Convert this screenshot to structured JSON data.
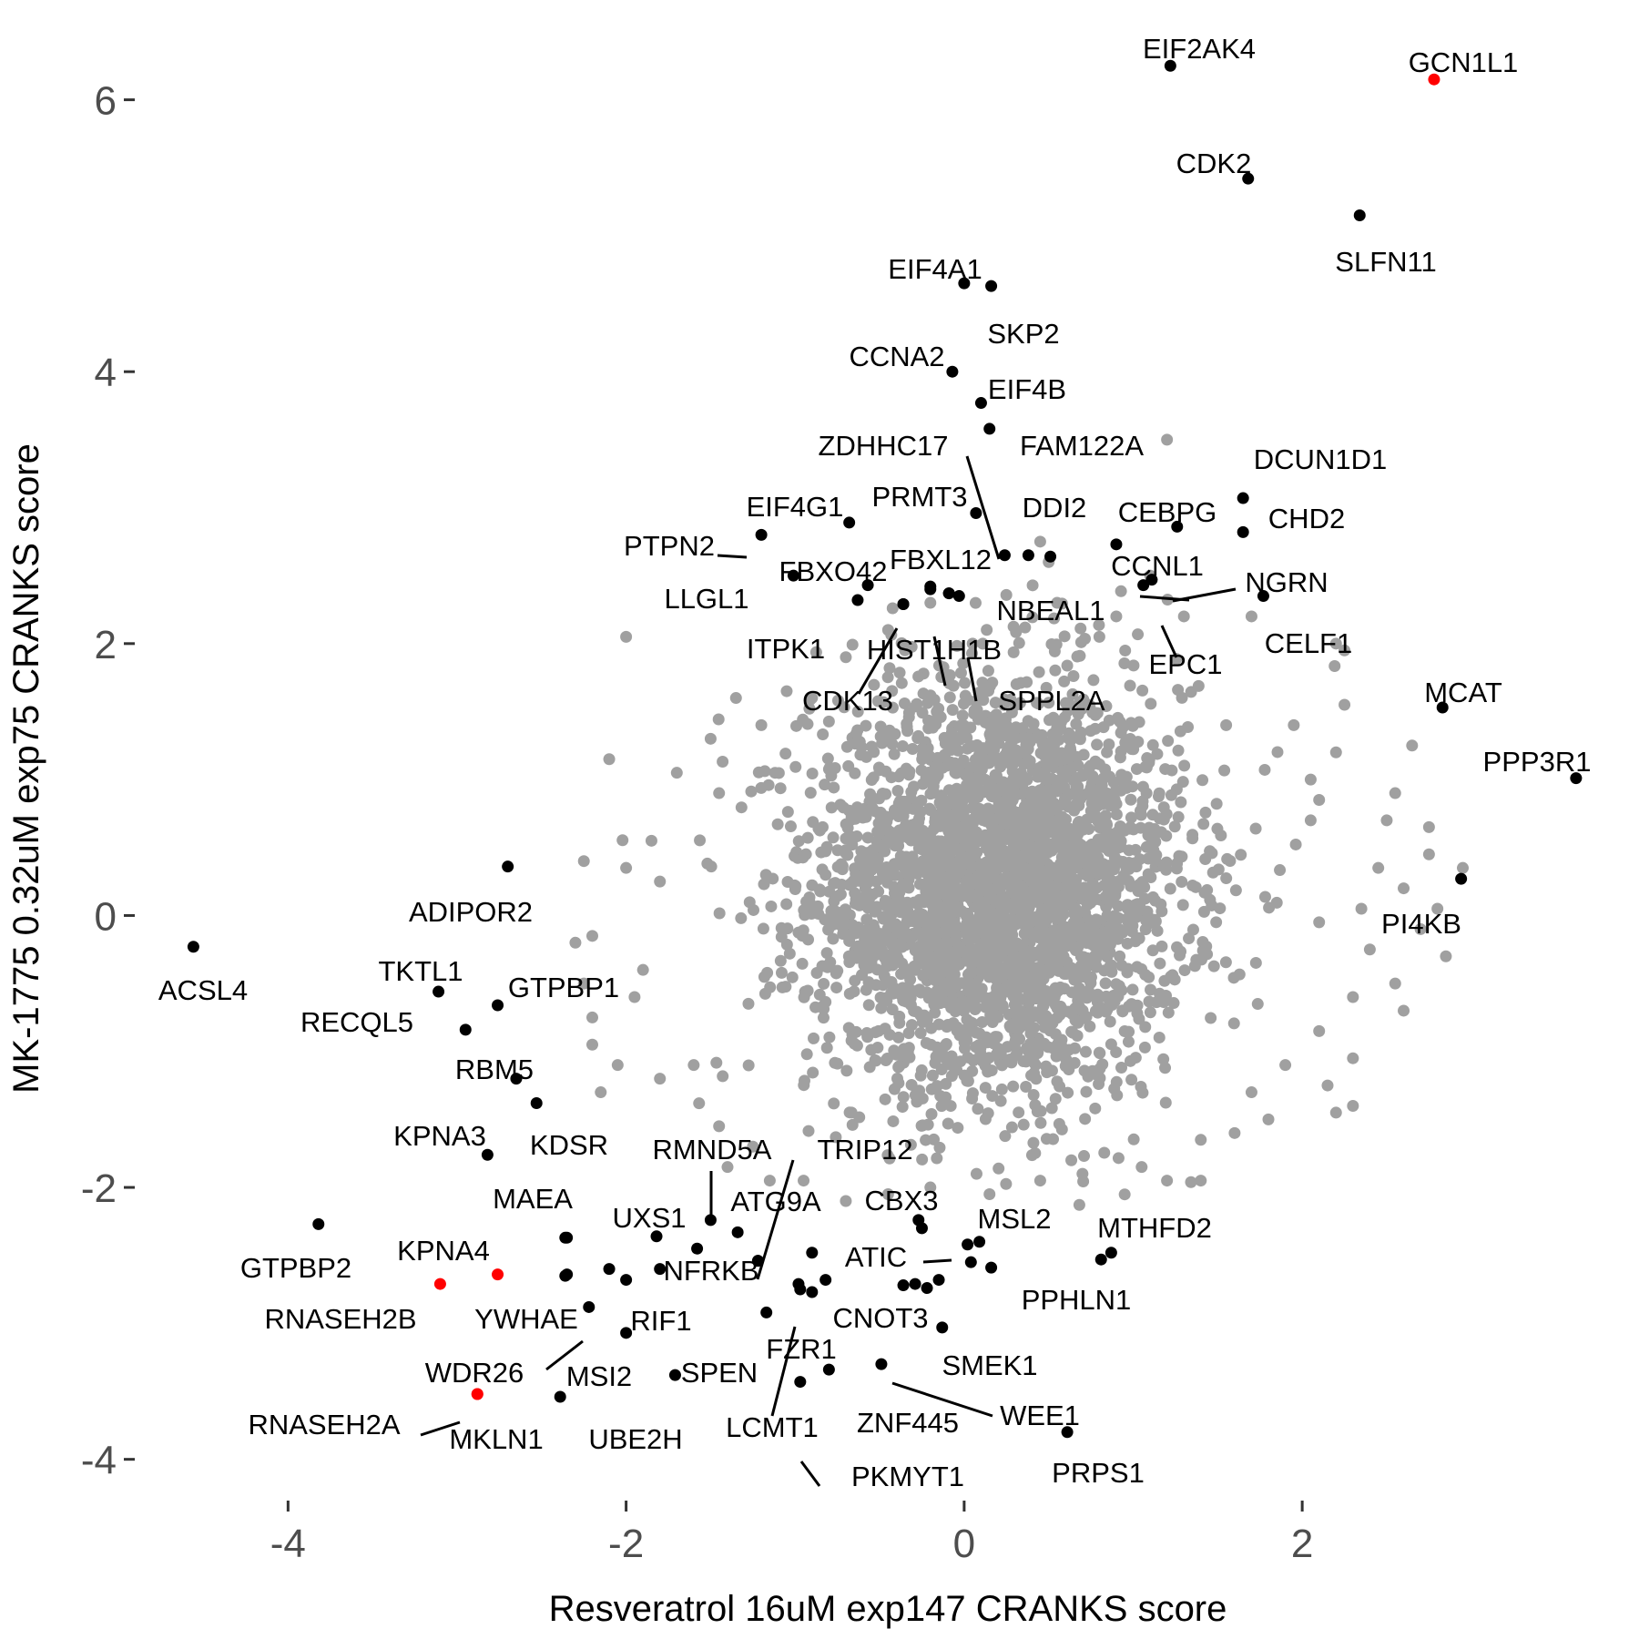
{
  "chart_data": {
    "type": "scatter",
    "title": "",
    "xlabel": "Resveratrol 16uM exp147 CRANKS score",
    "ylabel": "MK-1775 0.32uM exp75 CRANKS score",
    "xlim": [
      -4.95,
      3.75
    ],
    "ylim": [
      -4.25,
      6.6
    ],
    "x_ticks": [
      -4,
      -2,
      0,
      2
    ],
    "y_ticks": [
      -4,
      -2,
      0,
      2,
      4,
      6
    ],
    "x_tick_labels": [
      "-4",
      "-2",
      "0",
      "2"
    ],
    "y_tick_labels": [
      "-4",
      "-2",
      "0",
      "2",
      "4",
      "6"
    ],
    "grid": false,
    "legend": "none",
    "colors": {
      "background_points": "#a0a0a0",
      "highlight": "#000000",
      "special": "#ff0000",
      "leader_line": "#000000"
    },
    "background_cloud": {
      "color": "#a0a0a0",
      "x_center": 0.2,
      "y_center": 0.2,
      "x_spread": 0.55,
      "y_spread": 0.75,
      "count": 3200
    },
    "background_outliers": [
      {
        "x": 1.2,
        "y": 3.5
      },
      {
        "x": -2.0,
        "y": 2.05
      },
      {
        "x": 2.2,
        "y": 2.0
      },
      {
        "x": 2.25,
        "y": 1.95
      },
      {
        "x": 1.7,
        "y": 2.2
      },
      {
        "x": -1.35,
        "y": 1.6
      },
      {
        "x": -1.05,
        "y": 1.65
      },
      {
        "x": -2.1,
        "y": 1.15
      },
      {
        "x": 1.55,
        "y": 1.4
      },
      {
        "x": 1.95,
        "y": 1.4
      },
      {
        "x": 2.25,
        "y": 1.55
      },
      {
        "x": 2.2,
        "y": 1.2
      },
      {
        "x": 2.65,
        "y": 1.25
      },
      {
        "x": 2.05,
        "y": 1.0
      },
      {
        "x": 2.1,
        "y": 0.85
      },
      {
        "x": 2.05,
        "y": 0.7
      },
      {
        "x": 2.55,
        "y": 0.9
      },
      {
        "x": 2.75,
        "y": 0.65
      },
      {
        "x": 2.75,
        "y": 0.45
      },
      {
        "x": 2.6,
        "y": 0.2
      },
      {
        "x": 2.45,
        "y": 0.35
      },
      {
        "x": 2.35,
        "y": 0.05
      },
      {
        "x": 2.1,
        "y": -0.05
      },
      {
        "x": 2.4,
        "y": -0.25
      },
      {
        "x": 2.55,
        "y": -0.5
      },
      {
        "x": 2.7,
        "y": -0.1
      },
      {
        "x": 2.6,
        "y": -0.7
      },
      {
        "x": 2.3,
        "y": -0.6
      },
      {
        "x": 2.15,
        "y": -1.25
      },
      {
        "x": 2.2,
        "y": -1.45
      },
      {
        "x": 1.9,
        "y": -1.1
      },
      {
        "x": 1.7,
        "y": -1.3
      },
      {
        "x": 2.1,
        "y": -0.85
      },
      {
        "x": 1.2,
        "y": -1.95
      },
      {
        "x": 1.4,
        "y": -1.95
      },
      {
        "x": 1.6,
        "y": -1.6
      },
      {
        "x": -2.3,
        "y": -0.2
      },
      {
        "x": -2.25,
        "y": -0.5
      },
      {
        "x": -2.2,
        "y": -0.95
      },
      {
        "x": -2.15,
        "y": -1.3
      },
      {
        "x": -2.2,
        "y": -0.15
      },
      {
        "x": -1.9,
        "y": -0.4
      },
      {
        "x": -1.95,
        "y": -0.6
      },
      {
        "x": -2.25,
        "y": 0.4
      },
      {
        "x": -2.0,
        "y": 0.35
      },
      {
        "x": -1.85,
        "y": 0.55
      },
      {
        "x": -1.8,
        "y": 0.25
      },
      {
        "x": -2.2,
        "y": -0.75
      },
      {
        "x": -2.05,
        "y": -1.1
      },
      {
        "x": -1.8,
        "y": -1.2
      },
      {
        "x": -1.6,
        "y": -1.1
      },
      {
        "x": -1.45,
        "y": -1.55
      },
      {
        "x": -1.4,
        "y": -1.85
      },
      {
        "x": -1.15,
        "y": -1.95
      },
      {
        "x": -1.25,
        "y": -1.7
      },
      {
        "x": -0.95,
        "y": -1.95
      },
      {
        "x": -0.7,
        "y": -2.1
      },
      {
        "x": -0.45,
        "y": -2.05
      },
      {
        "x": -0.2,
        "y": -2.0
      },
      {
        "x": 0.15,
        "y": -2.05
      },
      {
        "x": 0.45,
        "y": -1.95
      },
      {
        "x": 0.7,
        "y": -1.9
      },
      {
        "x": 1.05,
        "y": -1.85
      },
      {
        "x": 0.9,
        "y": 2.2
      },
      {
        "x": 1.1,
        "y": 2.5
      },
      {
        "x": 1.3,
        "y": 2.2
      },
      {
        "x": 0.8,
        "y": 2.05
      },
      {
        "x": 0.55,
        "y": 2.3
      },
      {
        "x": 0.45,
        "y": 2.75
      },
      {
        "x": 0.5,
        "y": 2.6
      },
      {
        "x": -0.2,
        "y": 2.3
      },
      {
        "x": -0.45,
        "y": 2.1
      },
      {
        "x": -0.7,
        "y": 1.9
      },
      {
        "x": -0.35,
        "y": 1.95
      },
      {
        "x": 0.05,
        "y": 2.0
      },
      {
        "x": -0.9,
        "y": 1.6
      },
      {
        "x": -1.2,
        "y": 1.4
      },
      {
        "x": -1.5,
        "y": 1.3
      },
      {
        "x": -1.7,
        "y": 1.05
      },
      {
        "x": -1.45,
        "y": 0.9
      },
      {
        "x": 2.95,
        "y": 0.35
      },
      {
        "x": 2.85,
        "y": -0.3
      },
      {
        "x": 2.5,
        "y": 0.7
      },
      {
        "x": 2.3,
        "y": -1.05
      },
      {
        "x": 2.3,
        "y": -1.4
      },
      {
        "x": 1.4,
        "y": -1.65
      },
      {
        "x": 1.8,
        "y": -1.5
      },
      {
        "x": 2.8,
        "y": 0.05
      }
    ],
    "highlighted_points": [
      {
        "label": "EIF2AK4",
        "x": 1.22,
        "y": 6.25,
        "color": "#000000"
      },
      {
        "label": "GCN1L1",
        "x": 2.78,
        "y": 6.15,
        "color": "#ff0000"
      },
      {
        "label": "CDK2",
        "x": 1.68,
        "y": 5.42,
        "color": "#000000"
      },
      {
        "label": "SLFN11",
        "x": 2.34,
        "y": 5.15,
        "color": "#000000"
      },
      {
        "label": "EIF4A1",
        "x": 0.0,
        "y": 4.65,
        "color": "#000000"
      },
      {
        "label": "SKP2",
        "x": 0.16,
        "y": 4.63,
        "color": "#000000"
      },
      {
        "label": "CCNA2",
        "x": -0.07,
        "y": 4.0,
        "color": "#000000"
      },
      {
        "label": "EIF4B",
        "x": 0.1,
        "y": 3.77,
        "color": "#000000"
      },
      {
        "label": "FAM122A",
        "x": 0.15,
        "y": 3.58,
        "color": "#000000"
      },
      {
        "label": "ZDHHC17",
        "x": 0.24,
        "y": 2.65,
        "color": "#000000"
      },
      {
        "label": "DCUN1D1",
        "x": 1.65,
        "y": 3.07,
        "color": "#000000"
      },
      {
        "label": "CHD2",
        "x": 1.65,
        "y": 2.82,
        "color": "#000000"
      },
      {
        "label": "CEBPG",
        "x": 1.26,
        "y": 2.86,
        "color": "#000000"
      },
      {
        "label": "PRMT3",
        "x": 0.07,
        "y": 2.96,
        "color": "#000000"
      },
      {
        "label": "DDI2",
        "x": 0.38,
        "y": 2.65,
        "color": "#000000"
      },
      {
        "label": "EIF4G1",
        "x": -0.68,
        "y": 2.89,
        "color": "#000000"
      },
      {
        "label": "PTPN2",
        "x": -1.2,
        "y": 2.8,
        "color": "#000000"
      },
      {
        "label": "FBXL12",
        "x": -0.2,
        "y": 2.42,
        "color": "#000000"
      },
      {
        "label": "FBXO42",
        "x": -0.57,
        "y": 2.43,
        "color": "#000000"
      },
      {
        "label": "LLGL1",
        "x": -1.01,
        "y": 2.5,
        "color": "#000000"
      },
      {
        "label": "NBEAL1",
        "x": -0.09,
        "y": 2.37,
        "color": "#000000"
      },
      {
        "label": "CCNL1",
        "x": 0.9,
        "y": 2.73,
        "color": "#000000"
      },
      {
        "label": "NGRN",
        "x": 1.11,
        "y": 2.47,
        "color": "#000000"
      },
      {
        "label": "EPC1",
        "x": 1.06,
        "y": 2.43,
        "color": "#000000"
      },
      {
        "label": "CELF1",
        "x": 1.77,
        "y": 2.35,
        "color": "#000000"
      },
      {
        "label": "ITPK1",
        "x": -0.63,
        "y": 2.32,
        "color": "#000000"
      },
      {
        "label": "HIST1H1B",
        "x": -0.36,
        "y": 2.29,
        "color": "#000000"
      },
      {
        "label": "CDK13",
        "x": -0.36,
        "y": 2.29,
        "color": "#000000"
      },
      {
        "label": "SPPL2A",
        "x": -0.09,
        "y": 2.37,
        "color": "#000000"
      },
      {
        "label": "MCAT",
        "x": 2.83,
        "y": 1.53,
        "color": "#000000"
      },
      {
        "label": "PPP3R1",
        "x": 3.62,
        "y": 1.01,
        "color": "#000000"
      },
      {
        "label": "PI4KB",
        "x": 2.94,
        "y": 0.27,
        "color": "#000000"
      },
      {
        "label": "ADIPOR2",
        "x": -2.7,
        "y": 0.36,
        "color": "#000000"
      },
      {
        "label": "ACSL4",
        "x": -4.56,
        "y": -0.23,
        "color": "#000000"
      },
      {
        "label": "TKTL1",
        "x": -3.11,
        "y": -0.56,
        "color": "#000000"
      },
      {
        "label": "GTPBP1",
        "x": -2.76,
        "y": -0.66,
        "color": "#000000"
      },
      {
        "label": "RECQL5",
        "x": -2.95,
        "y": -0.84,
        "color": "#000000"
      },
      {
        "label": "RBM5",
        "x": -2.65,
        "y": -1.2,
        "color": "#000000"
      },
      {
        "label": "KDSR",
        "x": -2.53,
        "y": -1.38,
        "color": "#000000"
      },
      {
        "label": "KPNA3",
        "x": -2.82,
        "y": -1.76,
        "color": "#000000"
      },
      {
        "label": "RMND5A",
        "x": -1.5,
        "y": -2.24,
        "color": "#000000"
      },
      {
        "label": "TRIP12",
        "x": -1.22,
        "y": -2.54,
        "color": "#000000"
      },
      {
        "label": "ATG9A",
        "x": -1.34,
        "y": -2.33,
        "color": "#000000"
      },
      {
        "label": "MAEA",
        "x": -2.36,
        "y": -2.37,
        "color": "#000000"
      },
      {
        "label": "UXS1",
        "x": -1.82,
        "y": -2.36,
        "color": "#000000"
      },
      {
        "label": "NFRKB",
        "x": -1.22,
        "y": -2.54,
        "color": "#000000"
      },
      {
        "label": "GTPBP2",
        "x": -3.82,
        "y": -2.27,
        "color": "#000000"
      },
      {
        "label": "KPNA4",
        "x": -2.76,
        "y": -2.64,
        "color": "#ff0000"
      },
      {
        "label": "RNASEH2B",
        "x": -3.1,
        "y": -2.71,
        "color": "#ff0000"
      },
      {
        "label": "YWHAE",
        "x": -2.36,
        "y": -2.65,
        "color": "#000000"
      },
      {
        "label": "RIF1",
        "x": -2.0,
        "y": -2.68,
        "color": "#000000"
      },
      {
        "label": "WDR26",
        "x": -2.22,
        "y": -2.88,
        "color": "#000000"
      },
      {
        "label": "MSI2",
        "x": -2.0,
        "y": -3.07,
        "color": "#000000"
      },
      {
        "label": "SPEN",
        "x": -1.71,
        "y": -3.38,
        "color": "#000000"
      },
      {
        "label": "RNASEH2A",
        "x": -2.88,
        "y": -3.52,
        "color": "#ff0000"
      },
      {
        "label": "MKLN1",
        "x": -2.88,
        "y": -3.52,
        "color": "#ff0000"
      },
      {
        "label": "UBE2H",
        "x": -2.39,
        "y": -3.54,
        "color": "#000000"
      },
      {
        "label": "CBX3",
        "x": -0.27,
        "y": -2.24,
        "color": "#000000"
      },
      {
        "label": "MSL2",
        "x": 0.09,
        "y": -2.4,
        "color": "#000000"
      },
      {
        "label": "ATIC",
        "x": 0.02,
        "y": -2.42,
        "color": "#000000"
      },
      {
        "label": "MTHFD2",
        "x": 0.87,
        "y": -2.48,
        "color": "#000000"
      },
      {
        "label": "PPHLN1",
        "x": 0.16,
        "y": -2.59,
        "color": "#000000"
      },
      {
        "label": "CNOT3",
        "x": -0.36,
        "y": -2.72,
        "color": "#000000"
      },
      {
        "label": "FZR1",
        "x": -1.17,
        "y": -2.92,
        "color": "#000000"
      },
      {
        "label": "SMEK1",
        "x": -0.13,
        "y": -3.03,
        "color": "#000000"
      },
      {
        "label": "ZNF445",
        "x": -0.8,
        "y": -3.34,
        "color": "#000000"
      },
      {
        "label": "WEE1",
        "x": -0.49,
        "y": -3.3,
        "color": "#000000"
      },
      {
        "label": "LCMT1",
        "x": -0.97,
        "y": -2.75,
        "color": "#000000"
      },
      {
        "label": "PKMYT1",
        "x": -0.97,
        "y": -3.43,
        "color": "#000000"
      },
      {
        "label": "PRPS1",
        "x": 0.61,
        "y": -3.8,
        "color": "#000000"
      }
    ],
    "unlabeled_points": [
      {
        "x": 0.51,
        "y": 2.64
      },
      {
        "x": -0.2,
        "y": 2.4
      },
      {
        "x": -0.03,
        "y": 2.35
      },
      {
        "x": -2.35,
        "y": -2.37
      },
      {
        "x": -2.35,
        "y": -2.64
      },
      {
        "x": -2.1,
        "y": -2.6
      },
      {
        "x": -1.8,
        "y": -2.6
      },
      {
        "x": -0.9,
        "y": -2.48
      },
      {
        "x": -0.9,
        "y": -2.77
      },
      {
        "x": -0.25,
        "y": -2.3
      },
      {
        "x": -0.22,
        "y": -2.74
      },
      {
        "x": 0.04,
        "y": -2.55
      },
      {
        "x": 0.81,
        "y": -2.53
      },
      {
        "x": -0.15,
        "y": -2.68
      },
      {
        "x": -0.82,
        "y": -2.68
      },
      {
        "x": -0.29,
        "y": -2.71
      },
      {
        "x": -0.98,
        "y": -2.71
      },
      {
        "x": -1.58,
        "y": -2.45
      }
    ]
  }
}
